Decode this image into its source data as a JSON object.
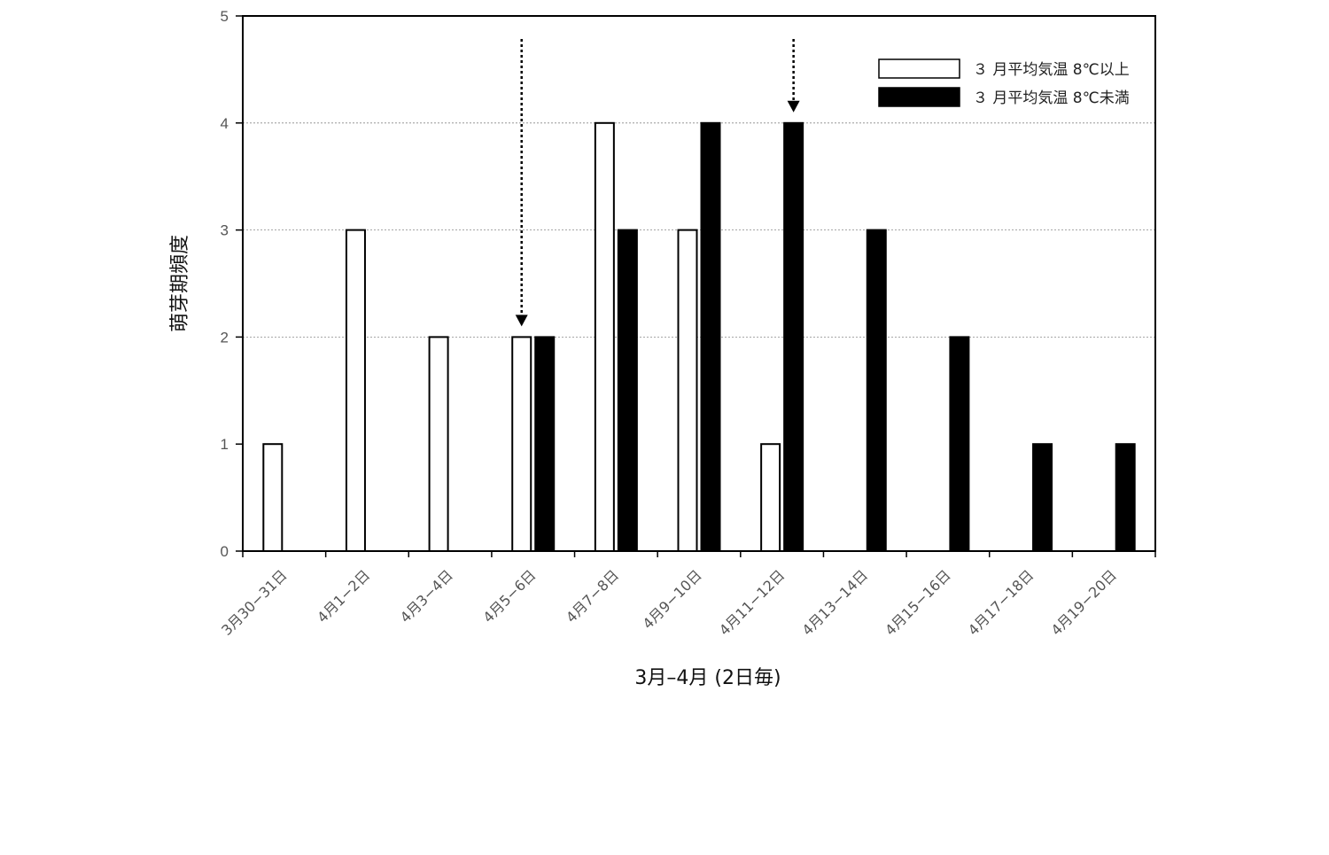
{
  "chart_data": {
    "type": "bar",
    "title": "",
    "xlabel": "3月–4月 (2日毎)",
    "ylabel": "萌芽期頻度",
    "ylim": [
      0,
      5
    ],
    "yticks": [
      0,
      1,
      2,
      3,
      4,
      5
    ],
    "grid_y_dashed_at": [
      2,
      3,
      4
    ],
    "legend_position": "top-right",
    "categories": [
      "3月30−31日",
      "4月1−2日",
      "4月3−4日",
      "4月5−6日",
      "4月7−8日",
      "4月9−10日",
      "4月11−12日",
      "4月13−14日",
      "4月15−16日",
      "4月17−18日",
      "4月19−20日"
    ],
    "series": [
      {
        "name": "３ 月平均気温 8℃以上",
        "fill": "#ffffff",
        "stroke": "#000000",
        "values": [
          1,
          3,
          2,
          2,
          4,
          3,
          1,
          0,
          0,
          0,
          0
        ]
      },
      {
        "name": "３ 月平均気温 8℃未満",
        "fill": "#000000",
        "stroke": "#000000",
        "values": [
          0,
          0,
          0,
          2,
          3,
          4,
          4,
          3,
          2,
          1,
          1
        ]
      }
    ],
    "annotations": [
      {
        "type": "dashed-arrow",
        "category": "4月5−6日",
        "series": 0
      },
      {
        "type": "dashed-arrow",
        "category": "4月11−12日",
        "series": 1
      }
    ]
  }
}
